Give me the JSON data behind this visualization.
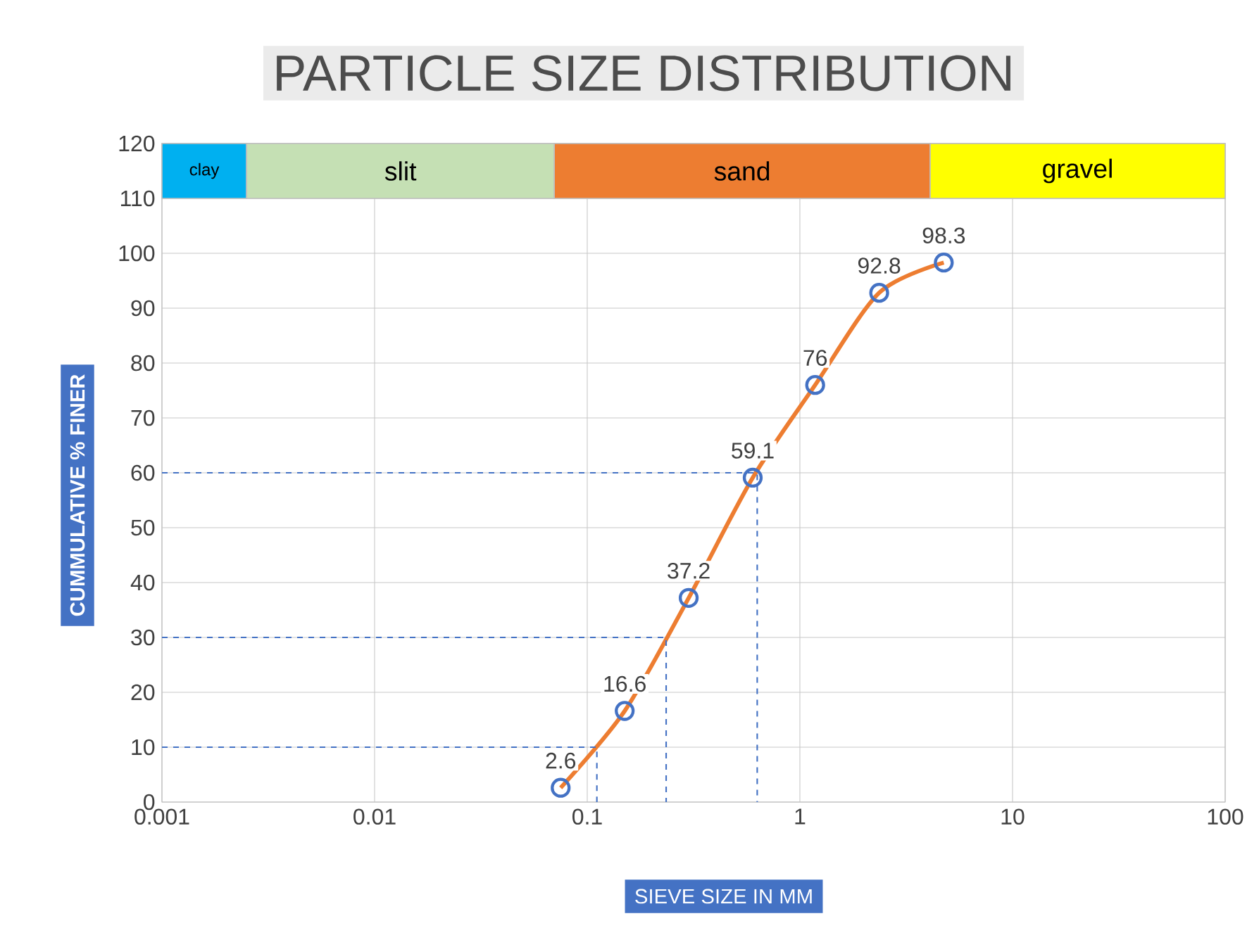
{
  "chart_data": {
    "type": "line",
    "title": "PARTICLE SIZE DISTRIBUTION",
    "xlabel": "SIEVE SIZE IN MM",
    "ylabel": "CUMMULATIVE % FINER",
    "log": "x",
    "grid": true,
    "data_labels": true,
    "marker": "circle",
    "xlim": [
      0.001,
      100
    ],
    "xticks": [
      0.001,
      0.01,
      0.1,
      1,
      10,
      100
    ],
    "ylim": [
      0,
      120
    ],
    "yticks": [
      0,
      10,
      20,
      30,
      40,
      50,
      60,
      70,
      80,
      90,
      100,
      110,
      120
    ],
    "x": [
      0.075,
      0.15,
      0.3,
      0.6,
      1.18,
      2.36,
      4.75
    ],
    "series": [
      {
        "color": "#ed7d31",
        "values": [
          2.6,
          16.6,
          37.2,
          59.1,
          76,
          92.8,
          98.3
        ]
      },
      {
        "type": "line",
        "color": "#4472c4",
        "line_style": "dashed",
        "marker": "none",
        "data_labels": false,
        "x": [
          0.001,
          0.111,
          0.111
        ],
        "values": [
          10,
          10,
          0
        ]
      },
      {
        "type": "line",
        "color": "#4472c4",
        "line_style": "dashed",
        "marker": "none",
        "data_labels": false,
        "x": [
          0.001,
          0.235,
          0.235
        ],
        "values": [
          30,
          30,
          0
        ]
      },
      {
        "type": "line",
        "color": "#4472c4",
        "line_style": "dashed",
        "marker": "none",
        "data_labels": false,
        "x": [
          0.001,
          0.63,
          0.63
        ],
        "values": [
          60,
          60,
          0
        ]
      }
    ],
    "bands": [
      {
        "axis": "x",
        "from": 0.001,
        "to": 0.0025,
        "label": "clay",
        "color": "#00b0f0"
      },
      {
        "axis": "x",
        "from": 0.0025,
        "to": 0.07,
        "label": "slit",
        "color": "#c5e0b4"
      },
      {
        "axis": "x",
        "from": 0.07,
        "to": 4.1,
        "label": "sand",
        "color": "#ed7d31"
      },
      {
        "axis": "x",
        "from": 4.1,
        "to": 100,
        "label": "gravel",
        "color": "#ffff00"
      }
    ]
  }
}
